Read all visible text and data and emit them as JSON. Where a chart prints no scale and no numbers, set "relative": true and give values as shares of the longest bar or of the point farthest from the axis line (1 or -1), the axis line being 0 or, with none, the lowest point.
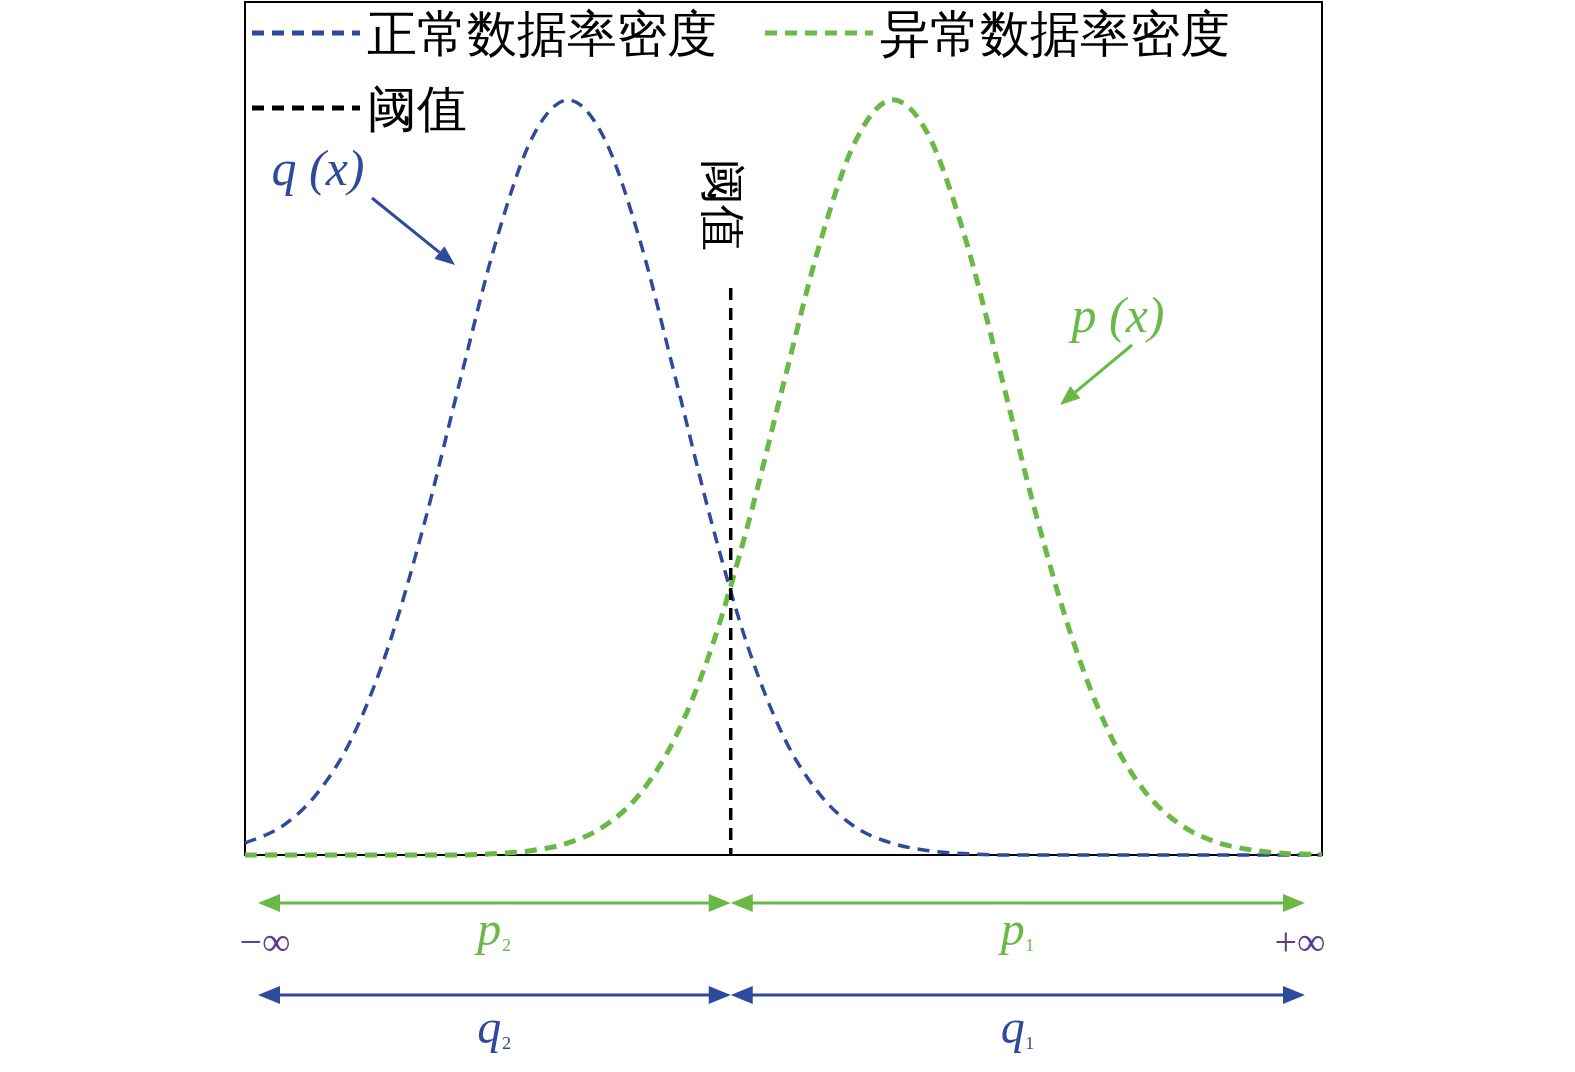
{
  "chart_data": {
    "type": "line",
    "relative": true,
    "legend": "top left",
    "line_style": "dashed",
    "marker": "none",
    "categories": [
      null,
      null,
      null,
      null,
      null,
      null,
      null,
      null,
      null,
      null,
      null,
      null,
      null,
      null,
      null,
      null,
      null,
      null,
      null,
      null,
      null,
      null,
      null,
      null,
      null,
      null,
      null,
      null,
      null,
      null,
      null
    ],
    "series": [
      {
        "name": "正常数据率密度",
        "color": "#2f4a9c",
        "values": [
          0.016,
          0.037,
          0.081,
          0.157,
          0.277,
          0.44,
          0.63,
          0.814,
          0.95,
          1,
          0.95,
          0.814,
          0.63,
          0.44,
          0.277,
          0.157,
          0.081,
          0.037,
          0.016,
          0.006,
          0.002,
          0,
          0,
          0,
          0,
          0,
          0,
          0,
          0,
          0,
          0
        ]
      },
      {
        "name": "异常数据率密度",
        "color": "#6ab947",
        "values": [
          0,
          0,
          0,
          0,
          0,
          0,
          0,
          0.002,
          0.006,
          0.016,
          0.038,
          0.081,
          0.157,
          0.275,
          0.436,
          0.624,
          0.808,
          0.945,
          1,
          0.957,
          0.827,
          0.647,
          0.457,
          0.293,
          0.169,
          0.088,
          0.042,
          0.018,
          0.007,
          0.002,
          0.001
        ]
      }
    ],
    "annotations": [
      "q (x)",
      "p (x)",
      "−∞",
      "+∞",
      "p₂",
      "p₁",
      "q₂",
      "q₁",
      "阈值",
      "阈值"
    ]
  }
}
